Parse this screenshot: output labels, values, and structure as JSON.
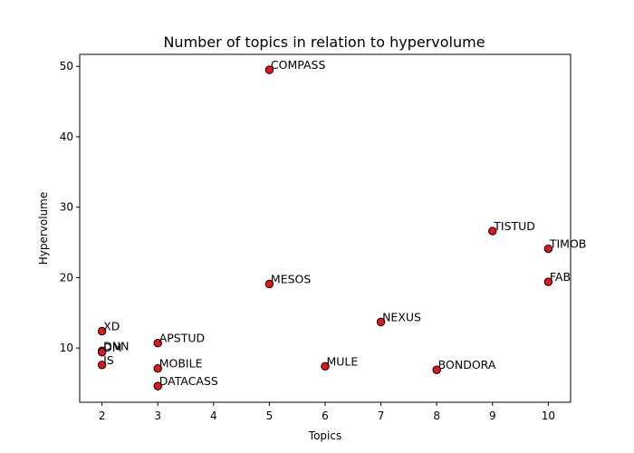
{
  "chart_data": {
    "type": "scatter",
    "title": "Number of topics in relation to hypervolume",
    "xlabel": "Topics",
    "ylabel": "Hypervolume",
    "xlim": [
      1.6,
      10.4
    ],
    "ylim": [
      2.3,
      51.7
    ],
    "xticks": [
      2,
      3,
      4,
      5,
      6,
      7,
      8,
      9,
      10
    ],
    "yticks": [
      10,
      20,
      30,
      40,
      50
    ],
    "grid": false,
    "marker_color": "#e8141b",
    "marker_edge_color": "#000000",
    "points": [
      {
        "label": "COMPASS",
        "x": 5,
        "y": 49.5
      },
      {
        "label": "TISTUD",
        "x": 9,
        "y": 26.6
      },
      {
        "label": "TIMOB",
        "x": 10,
        "y": 24.1
      },
      {
        "label": "FAB",
        "x": 10,
        "y": 19.4
      },
      {
        "label": "MESOS",
        "x": 5,
        "y": 19.1
      },
      {
        "label": "NEXUS",
        "x": 7,
        "y": 13.7
      },
      {
        "label": "XD",
        "x": 2,
        "y": 12.4
      },
      {
        "label": "APSTUD",
        "x": 3,
        "y": 10.7
      },
      {
        "label": "DNN",
        "x": 2,
        "y": 9.6
      },
      {
        "label": "DM",
        "x": 2,
        "y": 9.4
      },
      {
        "label": "IS",
        "x": 2,
        "y": 7.6
      },
      {
        "label": "MULE",
        "x": 6,
        "y": 7.4
      },
      {
        "label": "MOBILE",
        "x": 3,
        "y": 7.1
      },
      {
        "label": "BONDORA",
        "x": 8,
        "y": 6.9
      },
      {
        "label": "DATACASS",
        "x": 3,
        "y": 4.6
      }
    ]
  }
}
